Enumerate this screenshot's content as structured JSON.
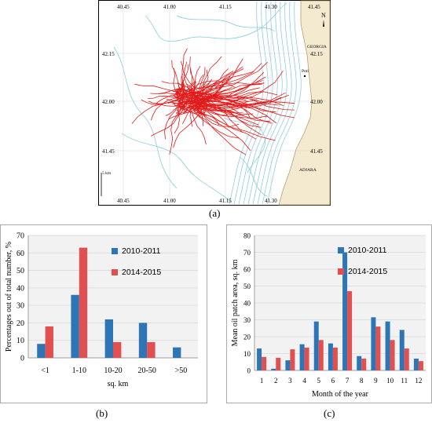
{
  "colors": {
    "series_2010": "#2e75b6",
    "series_2014": "#e05050",
    "map_sea": "#ffffff",
    "map_land": "#f3ead0",
    "map_contour": "#7ec8d8",
    "tracks": "#e00000",
    "plot_bg": "#f2f2f2",
    "grid": "#d9d9d9"
  },
  "panel_a": {
    "caption": "(a)",
    "lon_labels_top": [
      "40.45",
      "41.00",
      "41.15",
      "41.30",
      "41.45"
    ],
    "lon_labels_bottom": [
      "40.45",
      "41.00",
      "41.15",
      "41.30"
    ],
    "lat_labels_left": [
      "42.15",
      "42.00",
      "41.45"
    ],
    "lat_labels_right": [
      "42.15",
      "42.00",
      "41.45"
    ],
    "place_labels": [
      "GEORGIA",
      "Poti",
      "ADJARA"
    ],
    "north_label": "N",
    "scale_label": "5 km"
  },
  "chart_data": [
    {
      "type": "bar",
      "panel": "b",
      "caption": "(b)",
      "categories": [
        "<1",
        "1-10",
        "10-20",
        "20-50",
        ">50"
      ],
      "series": [
        {
          "name": "2010-2011",
          "values": [
            8,
            36,
            22,
            20,
            6
          ]
        },
        {
          "name": "2014-2015",
          "values": [
            18,
            63,
            9,
            9,
            0
          ]
        }
      ],
      "xlabel": "sq. km",
      "ylabel": "Percentages out of total number, %",
      "ylim": [
        0,
        70
      ],
      "yticks": [
        0,
        10,
        20,
        30,
        40,
        50,
        60,
        70
      ],
      "grid": true,
      "legend": "top-right"
    },
    {
      "type": "bar",
      "panel": "c",
      "caption": "(c)",
      "categories": [
        "1",
        "2",
        "3",
        "4",
        "5",
        "6",
        "7",
        "8",
        "9",
        "10",
        "11",
        "12"
      ],
      "series": [
        {
          "name": "2010-2011",
          "values": [
            13,
            1,
            6,
            15.5,
            29,
            16,
            70,
            8.5,
            31.5,
            29,
            24,
            7
          ]
        },
        {
          "name": "2014-2015",
          "values": [
            8,
            7.5,
            12.5,
            13.5,
            18,
            13.5,
            47,
            7,
            26,
            18,
            13,
            5.5
          ]
        }
      ],
      "xlabel": "Month of the year",
      "ylabel": "Mean oil patch area, sq. km",
      "ylim": [
        0,
        80
      ],
      "yticks": [
        0,
        10,
        20,
        30,
        40,
        50,
        60,
        70,
        80
      ],
      "grid": true,
      "legend": "top-right"
    }
  ]
}
